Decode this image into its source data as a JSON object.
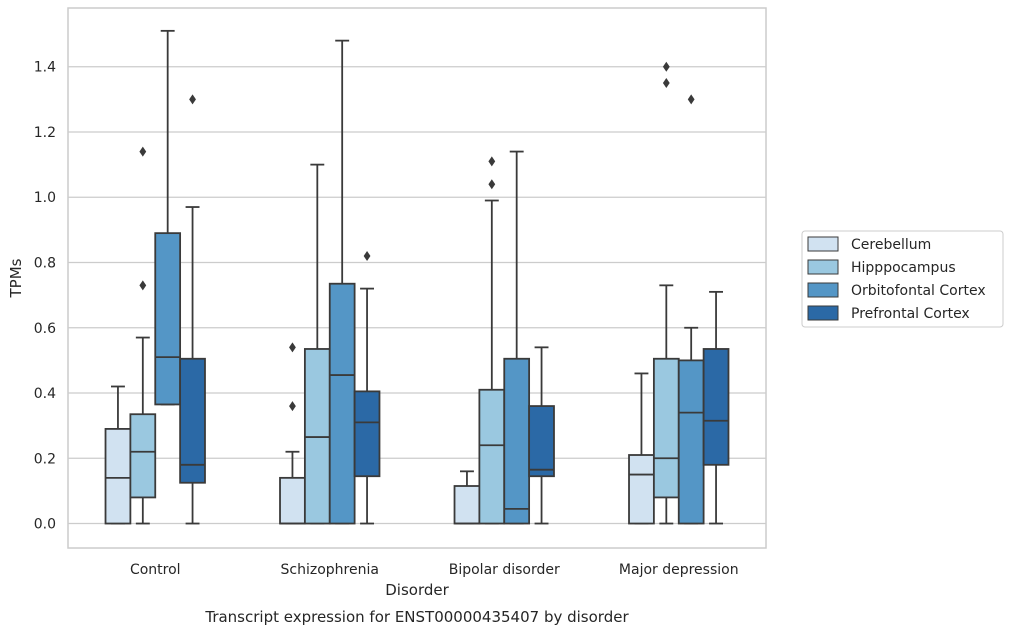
{
  "chart_data": {
    "type": "boxplot",
    "title": "Transcript expression for ENST00000435407 by disorder",
    "xlabel": "Disorder",
    "ylabel": "TPMs",
    "ylim": [
      -0.075,
      1.58
    ],
    "yticks": [
      "0.0",
      "0.2",
      "0.4",
      "0.6",
      "0.8",
      "1.0",
      "1.2",
      "1.4"
    ],
    "grid": true,
    "legend_position": "right",
    "categories": [
      "Control",
      "Schizophrenia",
      "Bipolar disorder",
      "Major depression"
    ],
    "series": [
      {
        "name": "Cerebellum",
        "color": "#d1e2f1",
        "boxes": [
          {
            "whisker_low": 0.0,
            "q1": 0.0,
            "median": 0.14,
            "q3": 0.29,
            "whisker_high": 0.42,
            "outliers": []
          },
          {
            "whisker_low": 0.0,
            "q1": 0.0,
            "median": 0.0,
            "q3": 0.14,
            "whisker_high": 0.22,
            "outliers": [
              0.36,
              0.54
            ]
          },
          {
            "whisker_low": 0.0,
            "q1": 0.0,
            "median": 0.0,
            "q3": 0.115,
            "whisker_high": 0.16,
            "outliers": []
          },
          {
            "whisker_low": 0.0,
            "q1": 0.0,
            "median": 0.15,
            "q3": 0.21,
            "whisker_high": 0.46,
            "outliers": []
          }
        ]
      },
      {
        "name": "Hipppocampus",
        "color": "#9ac8e0",
        "boxes": [
          {
            "whisker_low": 0.0,
            "q1": 0.08,
            "median": 0.22,
            "q3": 0.335,
            "whisker_high": 0.57,
            "outliers": [
              0.73,
              1.14
            ]
          },
          {
            "whisker_low": 0.0,
            "q1": 0.0,
            "median": 0.265,
            "q3": 0.535,
            "whisker_high": 1.1,
            "outliers": []
          },
          {
            "whisker_low": 0.0,
            "q1": 0.0,
            "median": 0.24,
            "q3": 0.41,
            "whisker_high": 0.99,
            "outliers": [
              1.04,
              1.11
            ]
          },
          {
            "whisker_low": 0.0,
            "q1": 0.08,
            "median": 0.2,
            "q3": 0.505,
            "whisker_high": 0.73,
            "outliers": [
              1.35,
              1.4
            ]
          }
        ]
      },
      {
        "name": "Orbitofontal Cortex",
        "color": "#5496c6",
        "boxes": [
          {
            "whisker_low": 0.365,
            "q1": 0.365,
            "median": 0.51,
            "q3": 0.89,
            "whisker_high": 1.51,
            "outliers": []
          },
          {
            "whisker_low": 0.0,
            "q1": 0.0,
            "median": 0.455,
            "q3": 0.735,
            "whisker_high": 1.48,
            "outliers": []
          },
          {
            "whisker_low": 0.0,
            "q1": 0.0,
            "median": 0.045,
            "q3": 0.505,
            "whisker_high": 1.14,
            "outliers": []
          },
          {
            "whisker_low": 0.0,
            "q1": 0.0,
            "median": 0.34,
            "q3": 0.5,
            "whisker_high": 0.6,
            "outliers": [
              1.3
            ]
          }
        ]
      },
      {
        "name": "Prefrontal Cortex",
        "color": "#2b69a6",
        "boxes": [
          {
            "whisker_low": 0.0,
            "q1": 0.125,
            "median": 0.18,
            "q3": 0.505,
            "whisker_high": 0.97,
            "outliers": [
              1.3
            ]
          },
          {
            "whisker_low": 0.0,
            "q1": 0.145,
            "median": 0.31,
            "q3": 0.405,
            "whisker_high": 0.72,
            "outliers": [
              0.82
            ]
          },
          {
            "whisker_low": 0.0,
            "q1": 0.145,
            "median": 0.165,
            "q3": 0.36,
            "whisker_high": 0.54,
            "outliers": []
          },
          {
            "whisker_low": 0.0,
            "q1": 0.18,
            "median": 0.315,
            "q3": 0.535,
            "whisker_high": 0.71,
            "outliers": []
          }
        ]
      }
    ]
  }
}
